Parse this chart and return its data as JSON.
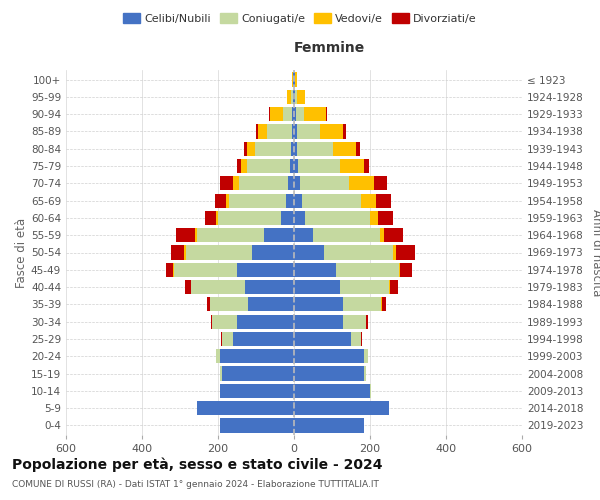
{
  "age_groups": [
    "0-4",
    "5-9",
    "10-14",
    "15-19",
    "20-24",
    "25-29",
    "30-34",
    "35-39",
    "40-44",
    "45-49",
    "50-54",
    "55-59",
    "60-64",
    "65-69",
    "70-74",
    "75-79",
    "80-84",
    "85-89",
    "90-94",
    "95-99",
    "100+"
  ],
  "birth_years": [
    "2019-2023",
    "2014-2018",
    "2009-2013",
    "2004-2008",
    "1999-2003",
    "1994-1998",
    "1989-1993",
    "1984-1988",
    "1979-1983",
    "1974-1978",
    "1969-1973",
    "1964-1968",
    "1959-1963",
    "1954-1958",
    "1949-1953",
    "1944-1948",
    "1939-1943",
    "1934-1938",
    "1929-1933",
    "1924-1928",
    "≤ 1923"
  ],
  "colors": {
    "celibi": "#4472c4",
    "coniugati": "#c5d9a0",
    "vedovi": "#ffc000",
    "divorziati": "#c00000"
  },
  "males": {
    "celibi": [
      195,
      255,
      195,
      190,
      195,
      160,
      150,
      120,
      130,
      150,
      110,
      80,
      35,
      20,
      15,
      10,
      8,
      5,
      4,
      3,
      2
    ],
    "coniugati": [
      0,
      0,
      0,
      5,
      10,
      30,
      65,
      100,
      140,
      165,
      175,
      175,
      165,
      150,
      130,
      115,
      95,
      65,
      25,
      5,
      0
    ],
    "vedovi": [
      0,
      0,
      0,
      0,
      0,
      0,
      0,
      0,
      2,
      3,
      5,
      5,
      5,
      8,
      15,
      15,
      20,
      25,
      35,
      10,
      2
    ],
    "divorziati": [
      0,
      0,
      0,
      0,
      0,
      2,
      3,
      10,
      15,
      18,
      35,
      50,
      30,
      30,
      35,
      10,
      8,
      5,
      2,
      0,
      0
    ]
  },
  "females": {
    "celibi": [
      185,
      250,
      200,
      185,
      185,
      150,
      130,
      130,
      120,
      110,
      80,
      50,
      30,
      20,
      15,
      10,
      8,
      8,
      5,
      3,
      2
    ],
    "coniugati": [
      0,
      0,
      2,
      5,
      10,
      25,
      60,
      100,
      130,
      165,
      180,
      175,
      170,
      155,
      130,
      110,
      95,
      60,
      20,
      5,
      0
    ],
    "vedovi": [
      0,
      0,
      0,
      0,
      0,
      0,
      0,
      2,
      3,
      5,
      8,
      12,
      20,
      40,
      65,
      65,
      60,
      60,
      60,
      20,
      5
    ],
    "divorziati": [
      0,
      0,
      0,
      0,
      0,
      3,
      5,
      10,
      20,
      30,
      50,
      50,
      40,
      40,
      35,
      12,
      10,
      8,
      2,
      0,
      0
    ]
  },
  "title": "Popolazione per età, sesso e stato civile - 2024",
  "subtitle": "COMUNE DI RUSSI (RA) - Dati ISTAT 1° gennaio 2024 - Elaborazione TUTTITALIA.IT",
  "xlabel_right": "Femmine",
  "ylabel_left": "Fasce di età",
  "ylabel_right": "Anni di nascita",
  "legend_labels": [
    "Celibi/Nubili",
    "Coniugati/e",
    "Vedovi/e",
    "Divorziati/e"
  ],
  "xlim": 600,
  "background_color": "#ffffff",
  "grid_color": "#cccccc"
}
